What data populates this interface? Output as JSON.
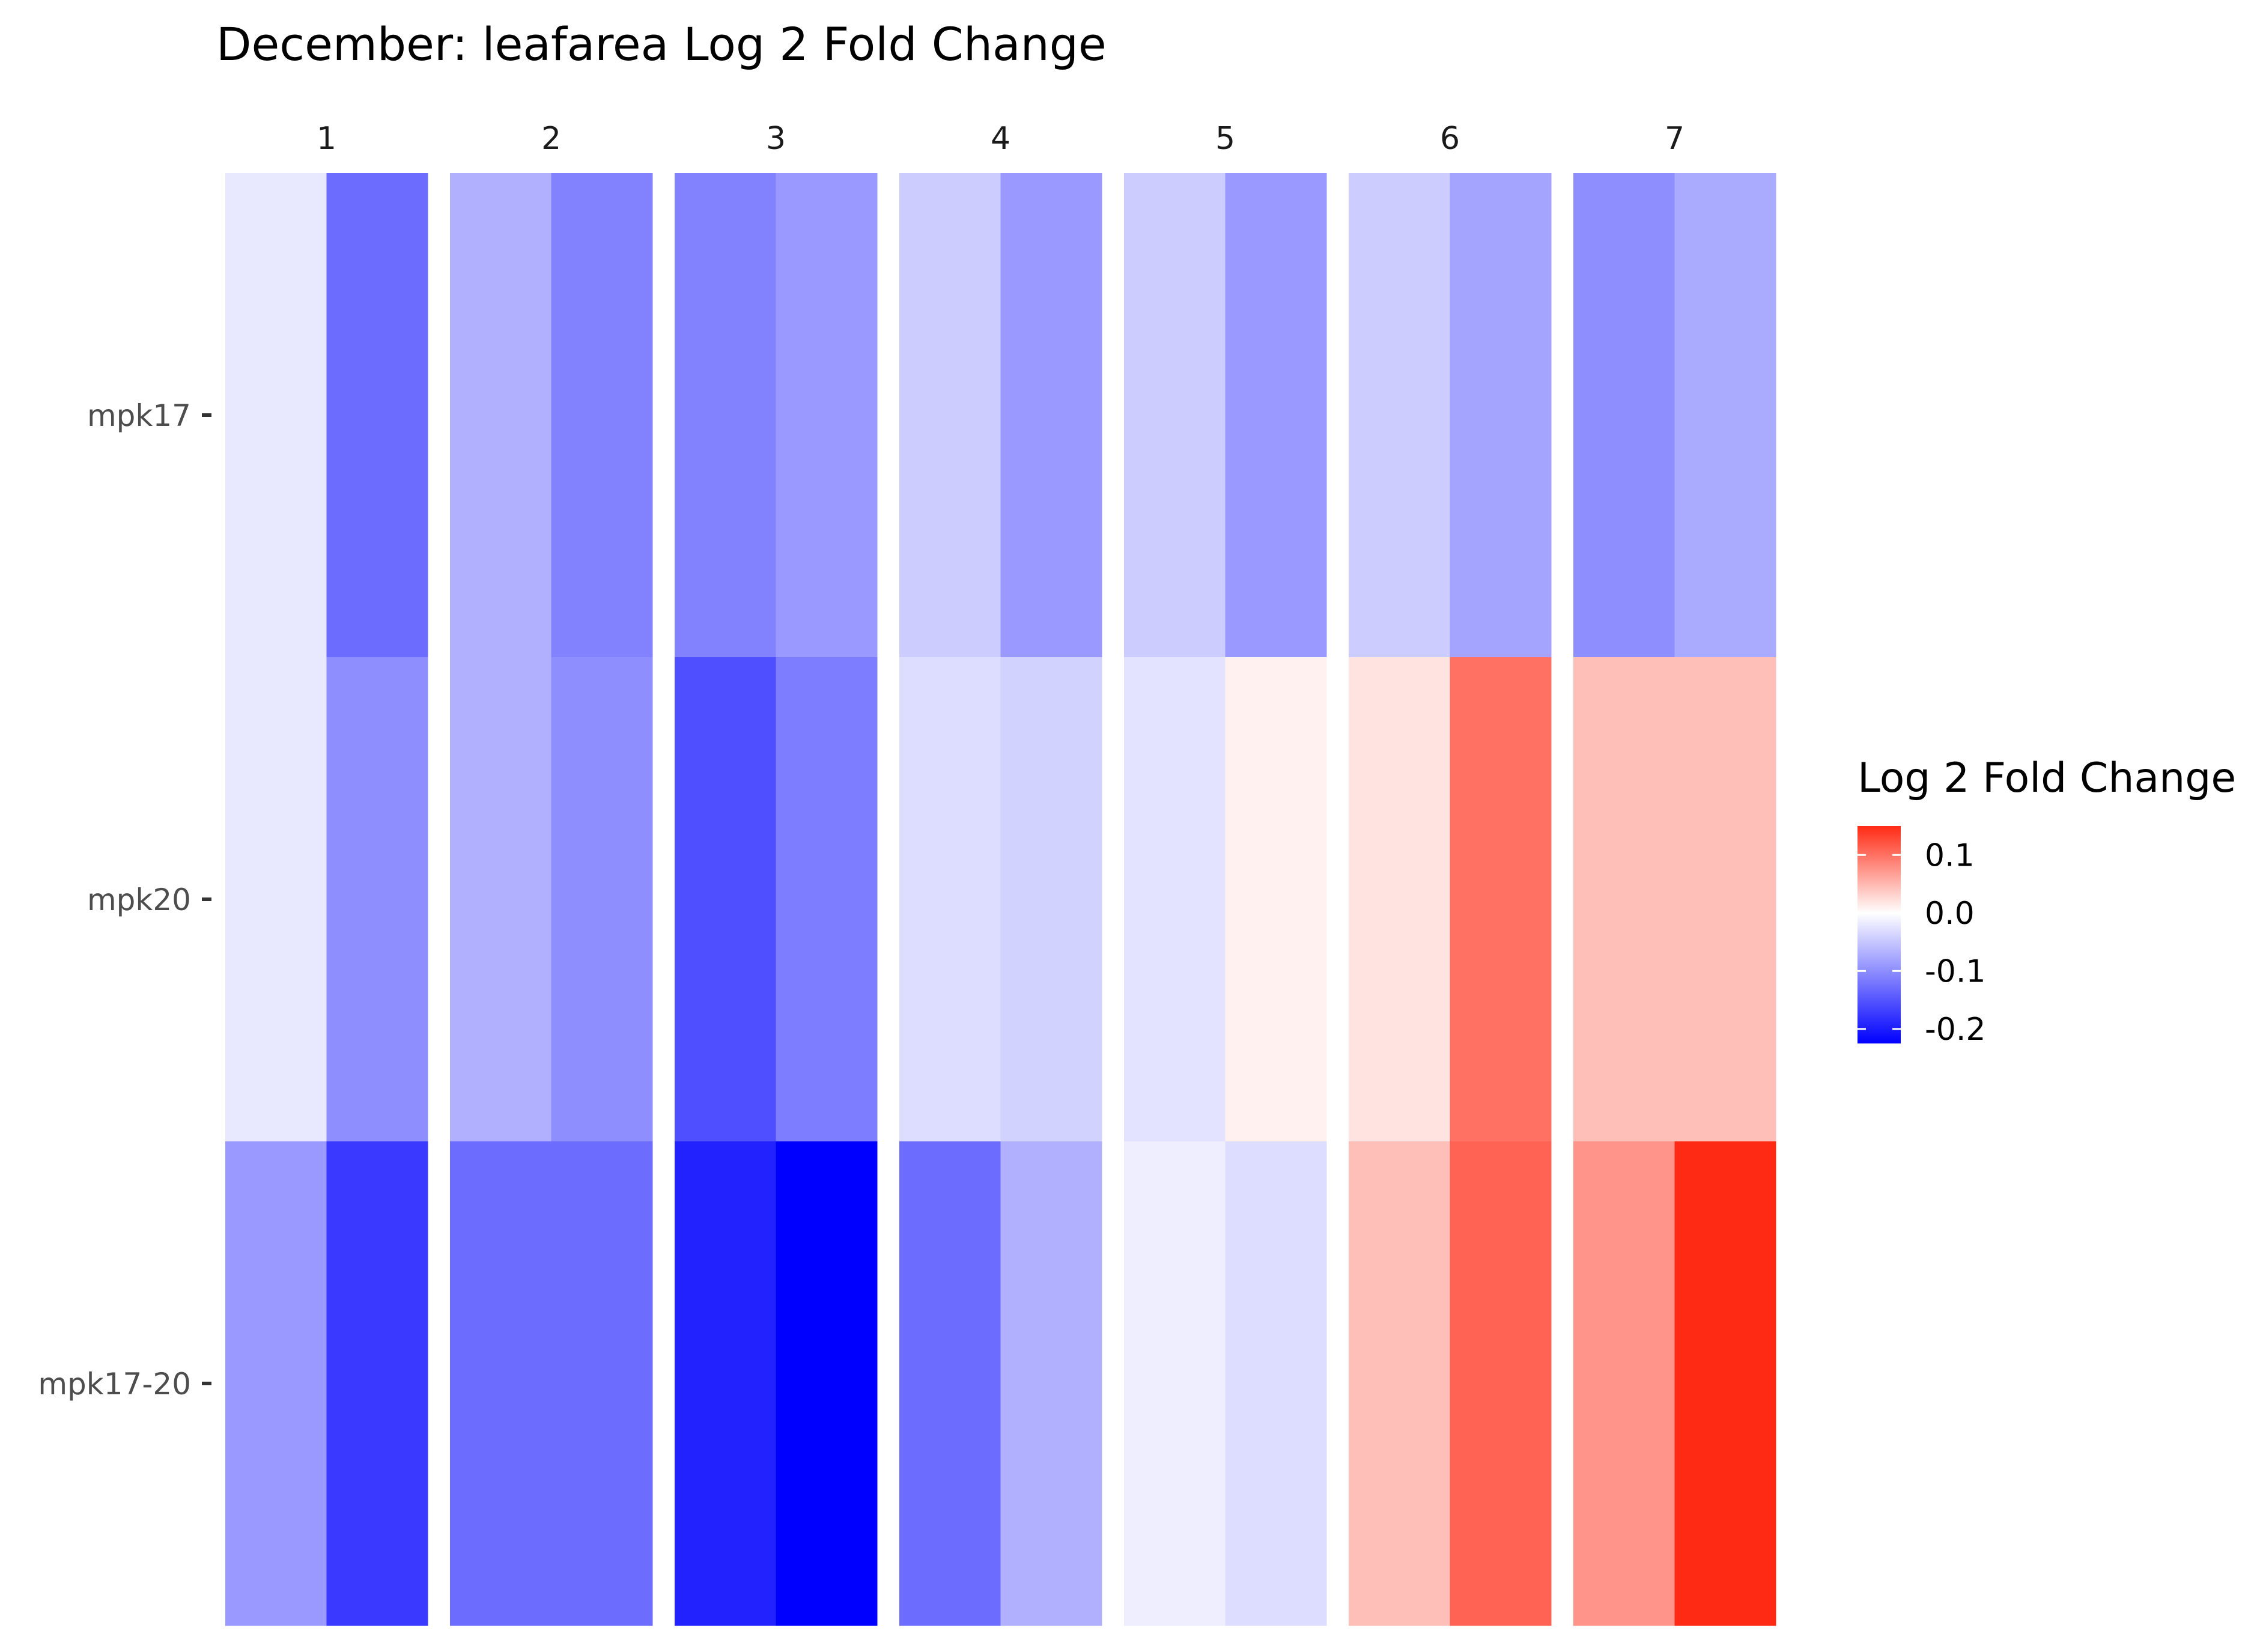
{
  "chart_data": {
    "type": "heatmap",
    "title": "December: leafarea Log 2 Fold Change",
    "facets": [
      "1",
      "2",
      "3",
      "4",
      "5",
      "6",
      "7"
    ],
    "columns_per_facet": 2,
    "rows": [
      "mpk17",
      "mpk20",
      "mpk17-20"
    ],
    "values": {
      "mpk17": [
        [
          -0.02,
          -0.13
        ],
        [
          -0.07,
          -0.11
        ],
        [
          -0.11,
          -0.09
        ],
        [
          -0.045,
          -0.09
        ],
        [
          -0.045,
          -0.09
        ],
        [
          -0.045,
          -0.08
        ],
        [
          -0.1,
          -0.075
        ]
      ],
      "mpk20": [
        [
          -0.02,
          -0.1
        ],
        [
          -0.07,
          -0.1
        ],
        [
          -0.155,
          -0.115
        ],
        [
          -0.03,
          -0.04
        ],
        [
          -0.025,
          0.01
        ],
        [
          0.02,
          0.1
        ],
        [
          0.045,
          0.045
        ]
      ],
      "mpk17-20": [
        [
          -0.09,
          -0.175
        ],
        [
          -0.13,
          -0.13
        ],
        [
          -0.195,
          -0.225
        ],
        [
          -0.13,
          -0.07
        ],
        [
          -0.015,
          -0.03
        ],
        [
          0.045,
          0.11
        ],
        [
          0.075,
          0.15
        ]
      ]
    },
    "legend": {
      "title": "Log 2 Fold Change",
      "ticks": [
        "0.1",
        "0.0",
        "-0.1",
        "-0.2"
      ],
      "tick_values": [
        0.1,
        0.0,
        -0.1,
        -0.2
      ],
      "range": [
        -0.225,
        0.15
      ],
      "low_color": "#0000ff",
      "mid_color": "#ffffff",
      "high_color": "#ff2a14"
    },
    "xlabel": "",
    "ylabel": ""
  }
}
